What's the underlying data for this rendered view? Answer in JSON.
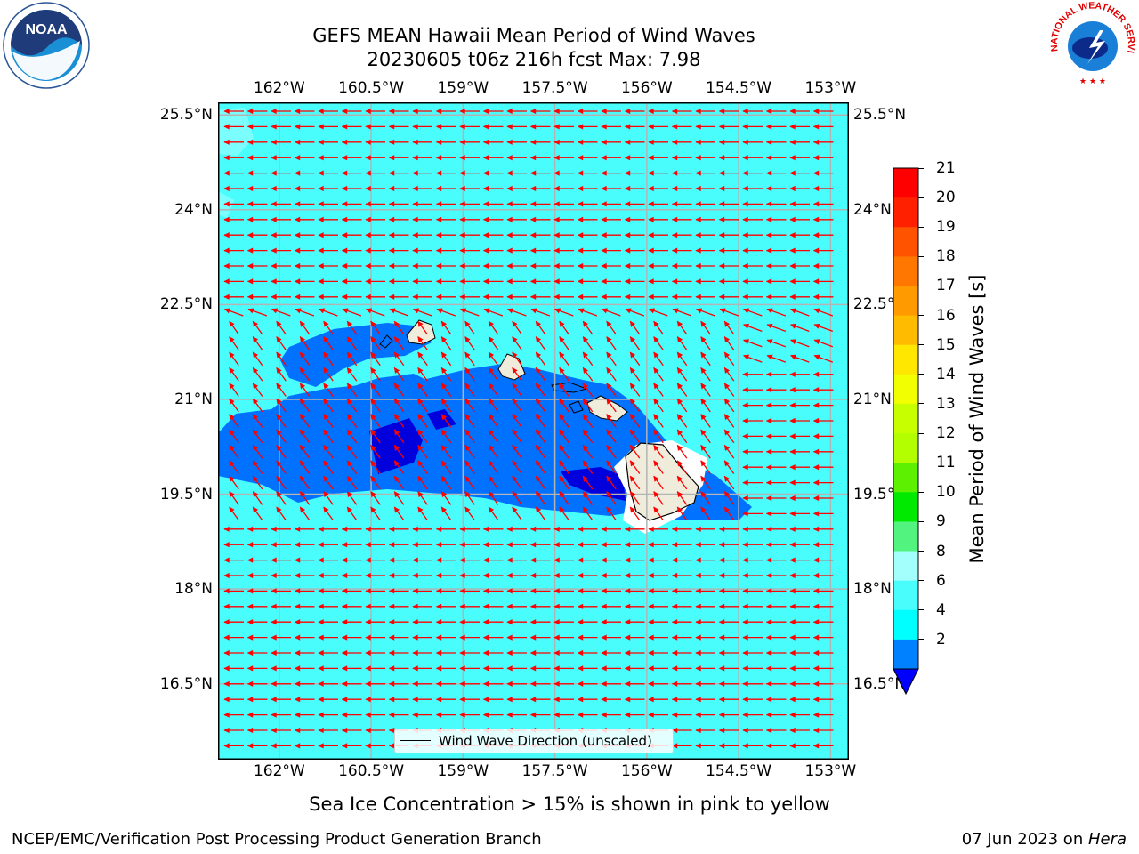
{
  "title": {
    "line1": "GEFS MEAN Hawaii Mean Period of Wind Waves",
    "line2": "20230605 t06z 216h fcst   Max: 7.98"
  },
  "map": {
    "lon_labels": [
      "162°W",
      "160.5°W",
      "159°W",
      "157.5°W",
      "156°W",
      "154.5°W",
      "153°W"
    ],
    "lat_labels": [
      "25.5°N",
      "24°N",
      "22.5°N",
      "21°N",
      "19.5°N",
      "18°N",
      "16.5°N"
    ],
    "lon_range": [
      -163,
      -152.7
    ],
    "lat_range": [
      15.3,
      25.7
    ],
    "background_color": "#49fdfd",
    "arrow_color": "#ff0000",
    "land_color": "#efecdc",
    "legend_label": "Wind Wave Direction (unscaled)"
  },
  "colorbar": {
    "label": "Mean Period of Wind Waves [s]",
    "ticks": [
      "21",
      "20",
      "19",
      "18",
      "17",
      "16",
      "15",
      "14",
      "13",
      "12",
      "11",
      "10",
      "9",
      "8",
      "6",
      "4",
      "2"
    ],
    "colors": [
      "#ff0000",
      "#ff2000",
      "#ff5300",
      "#ff7600",
      "#ff9a00",
      "#ffbb00",
      "#ffe700",
      "#f1ff00",
      "#c8ff00",
      "#b3ff00",
      "#5df000",
      "#00ea00",
      "#53f37f",
      "#a2fffb",
      "#49fdfd",
      "#00ffff",
      "#0081ff"
    ],
    "under_color": "#0000ff"
  },
  "logos": {
    "noaa_text": "NOAA",
    "nws_text": "NATIONAL WEATHER SERVICE"
  },
  "footer": {
    "ice_note": "Sea Ice Concentration > 15% is shown in pink to yellow",
    "branch": "NCEP/EMC/Verification Post Processing Product Generation Branch",
    "date_prefix": "07 Jun 2023 on ",
    "machine": "Hera"
  }
}
